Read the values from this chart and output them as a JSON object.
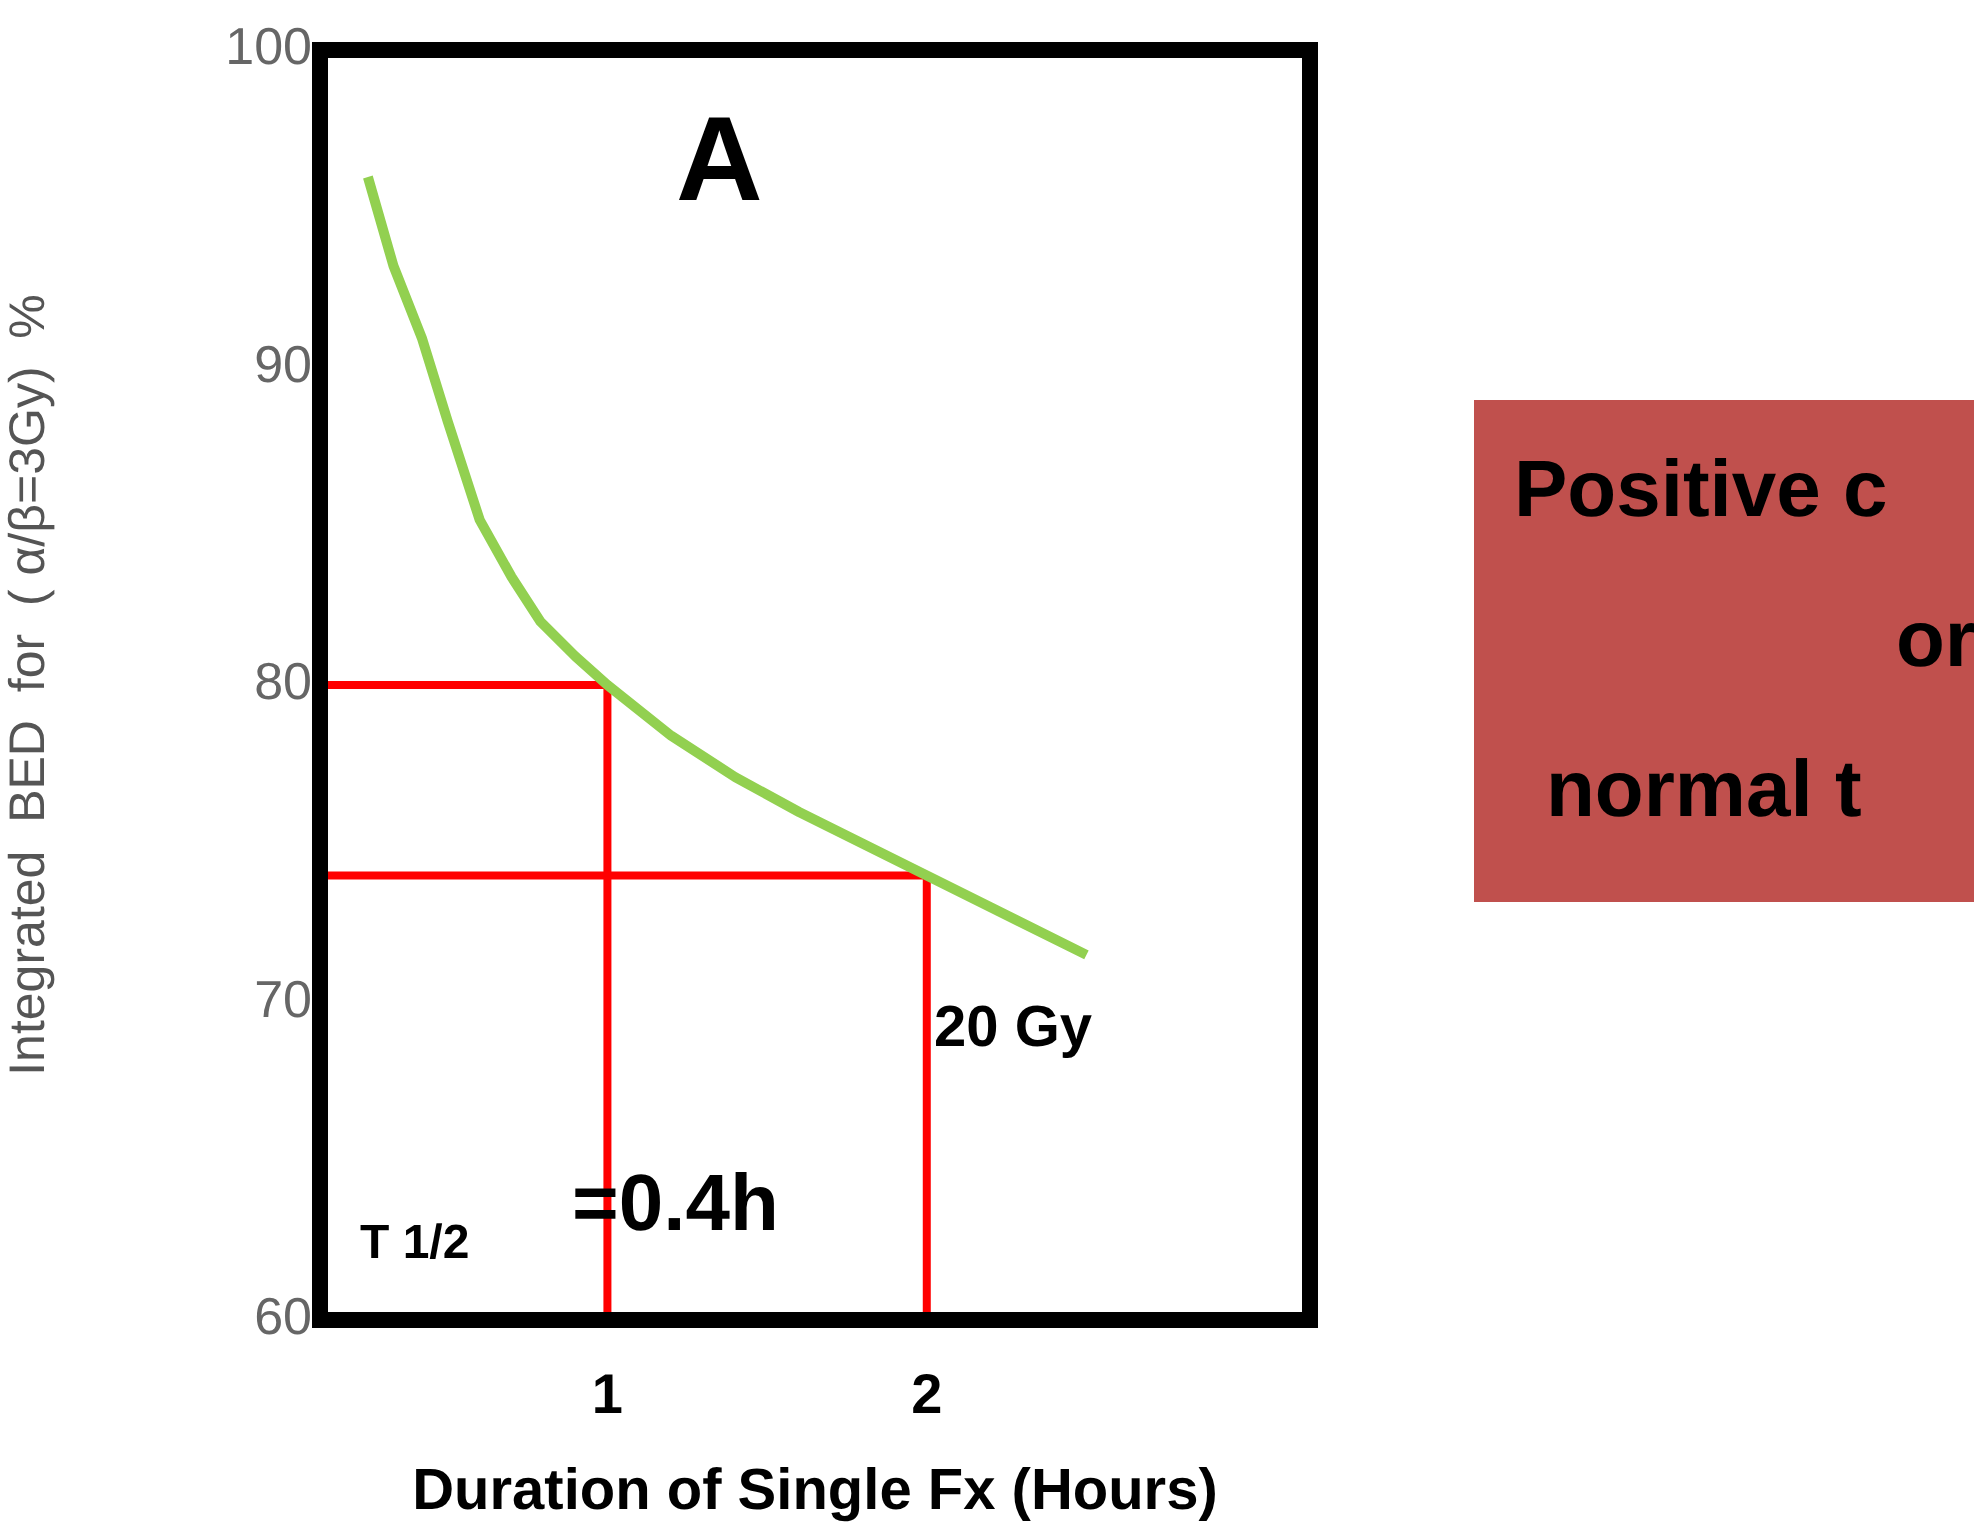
{
  "chart_data": {
    "type": "line",
    "xlabel": "Duration of Single Fx (Hours)",
    "ylabel": "Integrated  BED  for  ( α/β=3Gy)  %",
    "xlim": [
      0.1,
      3.2
    ],
    "xticks": [
      1,
      2
    ],
    "ylim": [
      60,
      100
    ],
    "yticks": [
      60,
      70,
      80,
      90,
      100
    ],
    "grid": false,
    "legend": false,
    "marker": "none",
    "line_style": "solid",
    "series": [
      {
        "color": "#92d050",
        "x": [
          0.25,
          0.33,
          0.42,
          0.5,
          0.6,
          0.7,
          0.79,
          0.9,
          1,
          1.2,
          1.4,
          1.6,
          1.8,
          2,
          2.2,
          2.5
        ],
        "values": [
          96,
          93.2,
          90.9,
          88.3,
          85.2,
          83.4,
          82,
          80.9,
          80,
          78.4,
          77.1,
          76,
          75,
          74,
          73,
          71.5
        ]
      },
      {
        "color": "#ff0000",
        "x": [
          0.1,
          1,
          1
        ],
        "values": [
          80,
          80,
          60
        ]
      },
      {
        "color": "#ff0000",
        "x": [
          0.1,
          2,
          2
        ],
        "values": [
          74,
          74,
          60
        ]
      }
    ],
    "annotations": [
      "A",
      "20 Gy",
      "T 1/2",
      "=0.4h",
      "Positive c",
      "or",
      "normal t"
    ]
  }
}
